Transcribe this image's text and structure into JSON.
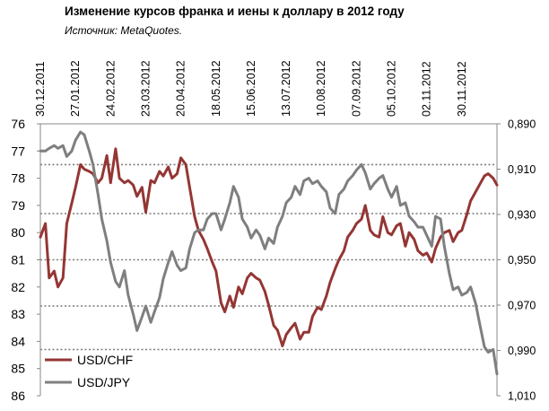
{
  "title": "Изменение курсов франка и иены к доллару в 2012 году",
  "subtitle": "Источник: MetaQuotes.",
  "chart_data": {
    "type": "line",
    "x_tick_labels": [
      "30.12.2011",
      "27.01.2012",
      "24.02.2012",
      "23.03.2012",
      "20.04.2012",
      "18.05.2012",
      "15.06.2012",
      "13.07.2012",
      "10.08.2012",
      "07.09.2012",
      "05.10.2012",
      "02.11.2012",
      "30.11.2012"
    ],
    "x_range": [
      "2011-12-30",
      "2012-12-28"
    ],
    "y_left": {
      "ticks": [
        "76",
        "77",
        "78",
        "79",
        "80",
        "81",
        "82",
        "83",
        "84",
        "85",
        "86"
      ],
      "range": [
        76,
        86
      ],
      "inverted": true,
      "series": "USD/JPY"
    },
    "y_right": {
      "ticks": [
        "0,890",
        "0,910",
        "0,930",
        "0,950",
        "0,970",
        "0,990",
        "1,010"
      ],
      "range": [
        0.89,
        1.01
      ],
      "inverted": true,
      "series": "USD/CHF"
    },
    "grid": {
      "style": "dotted",
      "lines_at_left_axis": [
        77.5,
        79.3,
        81.0,
        82.7,
        84.3
      ]
    },
    "legend": {
      "placement": "bottom-left",
      "entries": [
        "USD/CHF",
        "USD/JPY"
      ]
    },
    "series": [
      {
        "name": "USD/CHF",
        "color": "#943634",
        "axis": "right",
        "x": [
          "2011-12-30",
          "2012-01-03",
          "2012-01-06",
          "2012-01-10",
          "2012-01-13",
          "2012-01-17",
          "2012-01-20",
          "2012-01-24",
          "2012-01-27",
          "2012-01-31",
          "2012-02-03",
          "2012-02-07",
          "2012-02-10",
          "2012-02-14",
          "2012-02-17",
          "2012-02-21",
          "2012-02-24",
          "2012-02-28",
          "2012-03-02",
          "2012-03-06",
          "2012-03-09",
          "2012-03-13",
          "2012-03-16",
          "2012-03-20",
          "2012-03-23",
          "2012-03-27",
          "2012-03-30",
          "2012-04-03",
          "2012-04-06",
          "2012-04-10",
          "2012-04-13",
          "2012-04-17",
          "2012-04-20",
          "2012-04-24",
          "2012-04-27",
          "2012-05-01",
          "2012-05-04",
          "2012-05-08",
          "2012-05-11",
          "2012-05-15",
          "2012-05-18",
          "2012-05-22",
          "2012-05-25",
          "2012-05-29",
          "2012-06-01",
          "2012-06-05",
          "2012-06-08",
          "2012-06-12",
          "2012-06-15",
          "2012-06-19",
          "2012-06-22",
          "2012-06-26",
          "2012-06-29",
          "2012-07-03",
          "2012-07-06",
          "2012-07-10",
          "2012-07-13",
          "2012-07-17",
          "2012-07-20",
          "2012-07-24",
          "2012-07-27",
          "2012-07-31",
          "2012-08-03",
          "2012-08-07",
          "2012-08-10",
          "2012-08-14",
          "2012-08-17",
          "2012-08-21",
          "2012-08-24",
          "2012-08-28",
          "2012-08-31",
          "2012-09-04",
          "2012-09-07",
          "2012-09-11",
          "2012-09-14",
          "2012-09-18",
          "2012-09-21",
          "2012-09-25",
          "2012-09-28",
          "2012-10-02",
          "2012-10-05",
          "2012-10-09",
          "2012-10-12",
          "2012-10-16",
          "2012-10-19",
          "2012-10-23",
          "2012-10-26",
          "2012-10-30",
          "2012-11-02",
          "2012-11-06",
          "2012-11-09",
          "2012-11-13",
          "2012-11-16",
          "2012-11-20",
          "2012-11-23",
          "2012-11-27",
          "2012-11-30",
          "2012-12-04",
          "2012-12-07",
          "2012-12-11",
          "2012-12-14",
          "2012-12-18",
          "2012-12-21",
          "2012-12-25",
          "2012-12-28"
        ],
        "values": [
          0.94,
          0.934,
          0.958,
          0.955,
          0.962,
          0.958,
          0.934,
          0.925,
          0.918,
          0.908,
          0.91,
          0.911,
          0.912,
          0.916,
          0.914,
          0.904,
          0.916,
          0.901,
          0.914,
          0.916,
          0.915,
          0.917,
          0.922,
          0.918,
          0.929,
          0.915,
          0.916,
          0.911,
          0.913,
          0.909,
          0.914,
          0.912,
          0.905,
          0.908,
          0.918,
          0.931,
          0.937,
          0.941,
          0.945,
          0.951,
          0.955,
          0.969,
          0.973,
          0.966,
          0.971,
          0.962,
          0.965,
          0.958,
          0.956,
          0.958,
          0.959,
          0.964,
          0.97,
          0.979,
          0.981,
          0.988,
          0.983,
          0.98,
          0.978,
          0.985,
          0.982,
          0.982,
          0.975,
          0.971,
          0.972,
          0.966,
          0.96,
          0.954,
          0.95,
          0.946,
          0.94,
          0.937,
          0.934,
          0.932,
          0.926,
          0.937,
          0.939,
          0.94,
          0.931,
          0.938,
          0.939,
          0.935,
          0.934,
          0.944,
          0.938,
          0.941,
          0.946,
          0.948,
          0.947,
          0.951,
          0.945,
          0.94,
          0.938,
          0.937,
          0.942,
          0.938,
          0.937,
          0.93,
          0.924,
          0.92,
          0.917,
          0.913,
          0.912,
          0.914,
          0.917
        ]
      },
      {
        "name": "USD/JPY",
        "color": "#7f7f7f",
        "axis": "left",
        "x": [
          "2011-12-30",
          "2012-01-03",
          "2012-01-06",
          "2012-01-10",
          "2012-01-13",
          "2012-01-17",
          "2012-01-20",
          "2012-01-24",
          "2012-01-27",
          "2012-01-31",
          "2012-02-03",
          "2012-02-07",
          "2012-02-10",
          "2012-02-14",
          "2012-02-17",
          "2012-02-21",
          "2012-02-24",
          "2012-02-28",
          "2012-03-02",
          "2012-03-06",
          "2012-03-09",
          "2012-03-13",
          "2012-03-16",
          "2012-03-20",
          "2012-03-23",
          "2012-03-27",
          "2012-03-30",
          "2012-04-03",
          "2012-04-06",
          "2012-04-10",
          "2012-04-13",
          "2012-04-17",
          "2012-04-20",
          "2012-04-24",
          "2012-04-27",
          "2012-05-01",
          "2012-05-04",
          "2012-05-08",
          "2012-05-11",
          "2012-05-15",
          "2012-05-18",
          "2012-05-22",
          "2012-05-25",
          "2012-05-29",
          "2012-06-01",
          "2012-06-05",
          "2012-06-08",
          "2012-06-12",
          "2012-06-15",
          "2012-06-19",
          "2012-06-22",
          "2012-06-26",
          "2012-06-29",
          "2012-07-03",
          "2012-07-06",
          "2012-07-10",
          "2012-07-13",
          "2012-07-17",
          "2012-07-20",
          "2012-07-24",
          "2012-07-27",
          "2012-07-31",
          "2012-08-03",
          "2012-08-07",
          "2012-08-10",
          "2012-08-14",
          "2012-08-17",
          "2012-08-21",
          "2012-08-24",
          "2012-08-28",
          "2012-08-31",
          "2012-09-04",
          "2012-09-07",
          "2012-09-11",
          "2012-09-14",
          "2012-09-18",
          "2012-09-21",
          "2012-09-25",
          "2012-09-28",
          "2012-10-02",
          "2012-10-05",
          "2012-10-09",
          "2012-10-12",
          "2012-10-16",
          "2012-10-19",
          "2012-10-23",
          "2012-10-26",
          "2012-10-30",
          "2012-11-02",
          "2012-11-06",
          "2012-11-09",
          "2012-11-13",
          "2012-11-16",
          "2012-11-20",
          "2012-11-23",
          "2012-11-27",
          "2012-11-30",
          "2012-12-04",
          "2012-12-07",
          "2012-12-11",
          "2012-12-14",
          "2012-12-18",
          "2012-12-21",
          "2012-12-25",
          "2012-12-28"
        ],
        "values": [
          77.0,
          77.0,
          76.9,
          76.8,
          76.9,
          76.8,
          77.2,
          77.0,
          76.6,
          76.3,
          76.4,
          77.0,
          77.5,
          78.6,
          79.5,
          80.3,
          81.1,
          81.8,
          82.0,
          81.4,
          82.3,
          83.0,
          83.6,
          83.1,
          82.7,
          83.3,
          82.9,
          82.4,
          81.7,
          81.1,
          80.7,
          81.2,
          81.4,
          81.3,
          80.6,
          80.0,
          79.9,
          79.9,
          79.5,
          79.3,
          79.3,
          79.9,
          79.5,
          78.9,
          78.3,
          78.7,
          79.5,
          79.8,
          80.2,
          79.9,
          80.1,
          80.6,
          80.2,
          80.4,
          79.8,
          79.4,
          78.9,
          78.7,
          78.3,
          78.6,
          78.1,
          78.0,
          78.2,
          78.1,
          78.3,
          78.5,
          79.1,
          79.3,
          78.6,
          78.4,
          78.1,
          77.9,
          77.7,
          77.5,
          77.8,
          78.4,
          78.2,
          78.0,
          77.9,
          78.4,
          78.7,
          78.3,
          79.0,
          78.9,
          79.4,
          79.6,
          79.8,
          79.8,
          80.1,
          80.5,
          79.4,
          79.5,
          80.5,
          81.5,
          82.1,
          82.0,
          82.3,
          82.2,
          82.0,
          82.6,
          83.3,
          84.2,
          84.4,
          84.3,
          85.2
        ]
      }
    ]
  }
}
